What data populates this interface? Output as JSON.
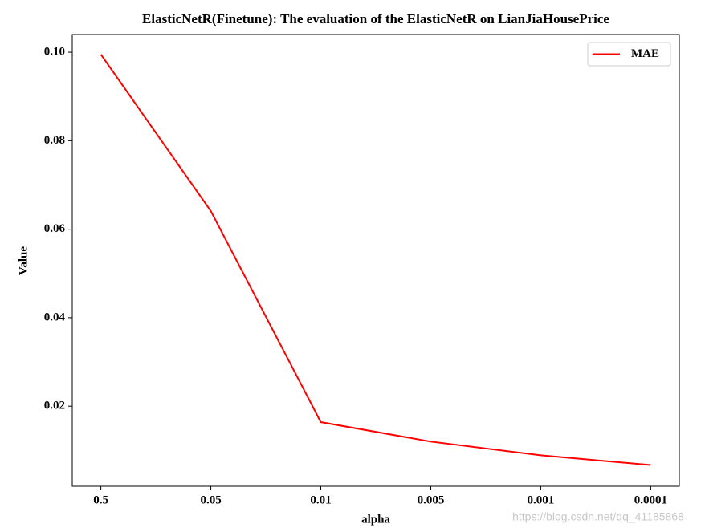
{
  "chart_data": {
    "type": "line",
    "title": "ElasticNetR(Finetune): The evaluation of the ElasticNetR on LianJiaHousePrice",
    "x_label": "alpha",
    "y_label": "Value",
    "categories": [
      "0.5",
      "0.05",
      "0.01",
      "0.005",
      "0.001",
      "0.0001"
    ],
    "series": [
      {
        "name": "MAE",
        "color": "#ff0000",
        "values": [
          0.0995,
          0.0641,
          0.0164,
          0.012,
          0.0089,
          0.0067
        ]
      }
    ],
    "ylim": [
      0.0019,
      0.104
    ],
    "yticks": [
      0.02,
      0.04,
      0.06,
      0.08,
      {
        "value": 0.1,
        "label": "0.10"
      }
    ],
    "grid": false,
    "legend": "upper right",
    "watermark": "https://blog.csdn.net/qq_41185868"
  }
}
